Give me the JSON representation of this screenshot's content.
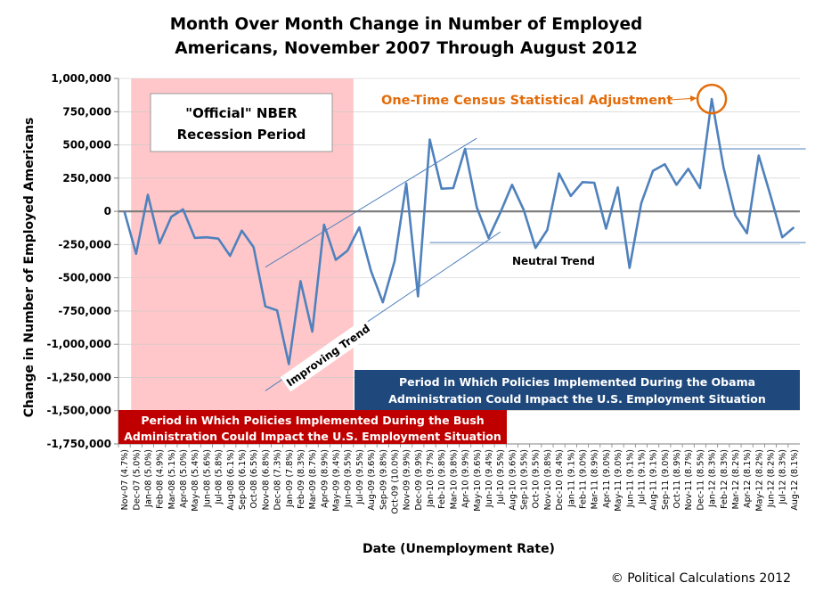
{
  "chart_data": {
    "type": "line",
    "title_line1": "Month Over Month Change in Number of Employed",
    "title_line2": "Americans, November 2007 Through August 2012",
    "xlabel": "Date (Unemployment Rate)",
    "ylabel": "Change in Number of Employed Americans",
    "ylim": [
      -1750000,
      1000000
    ],
    "yticks": [
      1000000,
      750000,
      500000,
      250000,
      0,
      -250000,
      -500000,
      -750000,
      -1000000,
      -1250000,
      -1500000,
      -1750000
    ],
    "ytick_labels": [
      "1,000,000",
      "750,000",
      "500,000",
      "250,000",
      "0",
      "-250,000",
      "-500,000",
      "-750,000",
      "-1,000,000",
      "-1,250,000",
      "-1,500,000",
      "-1,750,000"
    ],
    "categories": [
      "Nov-07 (4.7%)",
      "Dec-07 (5.0%)",
      "Jan-08 (5.0%)",
      "Feb-08 (4.9%)",
      "Mar-08 (5.1%)",
      "Apr-08 (5.0%)",
      "May-08 (5.4%)",
      "Jun-08 (5.6%)",
      "Jul-08 (5.8%)",
      "Aug-08 (6.1%)",
      "Sep-08 (6.1%)",
      "Oct-08 (6.5%)",
      "Nov-08 (6.8%)",
      "Dec-08 (7.3%)",
      "Jan-09 (7.8%)",
      "Feb-09 (8.3%)",
      "Mar-09 (8.7%)",
      "Apr-09 (8.9%)",
      "May-09 (9.4%)",
      "Jun-09 (9.5%)",
      "Jul-09 (9.5%)",
      "Aug-09 (9.6%)",
      "Sep-09 (9.8%)",
      "Oct-09 (10.0%)",
      "Nov-09 (9.9%)",
      "Dec-09 (9.9%)",
      "Jan-10 (9.7%)",
      "Feb-10 (9.8%)",
      "Mar-10 (9.8%)",
      "Apr-10 (9.9%)",
      "May-10 (9.6%)",
      "Jun-10 (9.4%)",
      "Jul-10 (9.5%)",
      "Aug-10 (9.6%)",
      "Sep-10 (9.5%)",
      "Oct-10 (9.5%)",
      "Nov-10 (9.8%)",
      "Dec-10 (9.4%)",
      "Jan-11 (9.1%)",
      "Feb-11 (9.0%)",
      "Mar-11 (8.9%)",
      "Apr-11 (9.0%)",
      "May-11 (9.0%)",
      "Jun-11 (9.1%)",
      "Jul-11 (9.1%)",
      "Aug-11 (9.1%)",
      "Sep-11 (9.0%)",
      "Oct-11 (8.9%)",
      "Nov-11 (8.7%)",
      "Dec-11 (8.5%)",
      "Jan-12 (8.3%)",
      "Feb-12 (8.3%)",
      "Mar-12 (8.2%)",
      "Apr-12 (8.1%)",
      "May-12 (8.2%)",
      "Jun-12 (8.2%)",
      "Jul-12 (8.3%)",
      "Aug-12 (8.1%)"
    ],
    "series": [
      {
        "name": "Change in Number of Employed Americans",
        "color": "#4f81bd",
        "values": [
          0,
          -320000,
          125000,
          -240000,
          -40000,
          15000,
          -200000,
          -195000,
          -205000,
          -335000,
          -145000,
          -270000,
          -715000,
          -745000,
          -1150000,
          -525000,
          -905000,
          -100000,
          -365000,
          -295000,
          -120000,
          -450000,
          -685000,
          -375000,
          210000,
          -640000,
          540000,
          170000,
          175000,
          470000,
          30000,
          -200000,
          -10000,
          200000,
          10000,
          -275000,
          -140000,
          285000,
          115000,
          220000,
          215000,
          -130000,
          180000,
          -425000,
          60000,
          305000,
          355000,
          200000,
          320000,
          175000,
          845000,
          330000,
          -30000,
          -165000,
          420000,
          120000,
          -195000,
          -120000
        ]
      }
    ],
    "recession_band": {
      "from": "Dec-07 (5.0%)",
      "to": "Jun-09 (9.5%)",
      "color": "#ffc7c9"
    },
    "trend_lines": {
      "improving_upper": {
        "from": [
          12,
          -420000
        ],
        "to": [
          30,
          550000
        ]
      },
      "improving_lower": {
        "from": [
          12,
          -1350000
        ],
        "to": [
          32,
          -155000
        ]
      },
      "neutral_upper": {
        "from": [
          29,
          470000
        ],
        "to": [
          58,
          470000
        ]
      },
      "neutral_lower": {
        "from": [
          26,
          -235000
        ],
        "to": [
          58,
          -235000
        ]
      }
    },
    "census_highlight_index": 50,
    "annotations": {
      "recession_box_line1": "\"Official\" NBER",
      "recession_box_line2": "Recession Period",
      "census_label": "One-Time Census Statistical Adjustment",
      "improving_trend": "Improving Trend",
      "neutral_trend": "Neutral Trend",
      "obama_banner_line1": "Period in Which Policies Implemented During the Obama",
      "obama_banner_line2": "Administration  Could Impact the U.S. Employment Situation",
      "bush_banner_line1": "Period in Which Policies Implemented During the Bush",
      "bush_banner_line2": "Administration Could Impact the U.S. Employment Situation"
    },
    "colors": {
      "line": "#4f81bd",
      "recession_band": "#ffc7c9",
      "bush_banner": "#c00000",
      "obama_banner": "#1f497d",
      "census": "#e36c0a",
      "trend": "#4f81bd",
      "zero_line": "#7f7f7f"
    }
  },
  "copyright": "© Political Calculations 2012"
}
